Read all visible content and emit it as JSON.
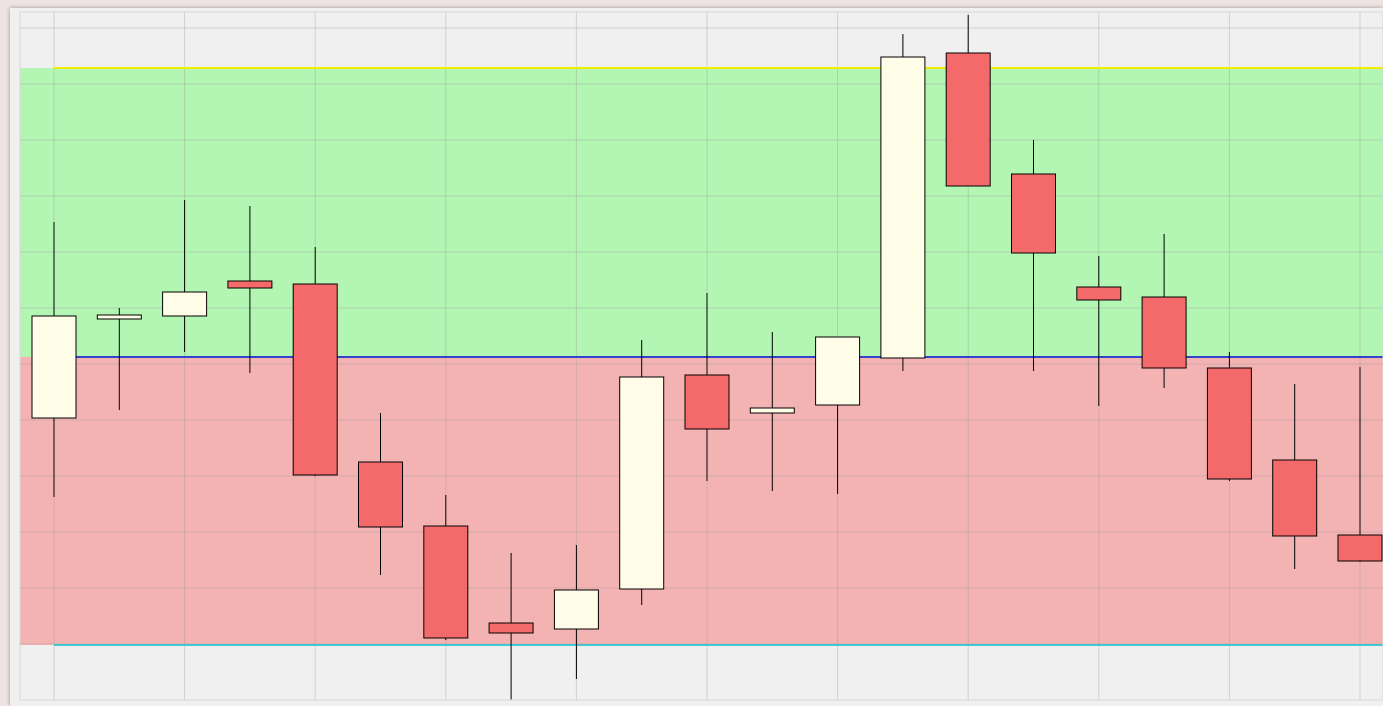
{
  "chart_data": {
    "type": "candlestick",
    "categories": [
      null,
      null,
      null,
      null,
      null,
      null,
      null,
      null,
      null,
      null,
      null,
      null,
      null,
      null,
      null,
      null,
      null,
      null,
      null,
      null,
      null
    ],
    "open": [
      282,
      381,
      384,
      419,
      416,
      238,
      174,
      77,
      71,
      111,
      325,
      287,
      295,
      342,
      647,
      526,
      413,
      403,
      332,
      240,
      165
    ],
    "high": [
      478,
      392,
      500,
      494,
      453,
      287,
      205,
      147,
      155,
      360,
      407,
      368,
      363,
      666,
      685,
      560,
      444,
      466,
      348,
      316,
      333
    ],
    "low": [
      203,
      290,
      348,
      327,
      224,
      125,
      60,
      0,
      21,
      95,
      219,
      209,
      206,
      329,
      514,
      329,
      294,
      312,
      219,
      131,
      138
    ],
    "close": [
      384,
      385,
      408,
      412,
      225,
      173,
      62,
      67,
      110,
      323,
      271,
      292,
      363,
      643,
      514,
      447,
      400,
      332,
      221,
      164,
      139
    ],
    "up_color": "#fffde8",
    "down_color": "#f46a6a",
    "bands": [
      {
        "color": "#eeee00",
        "values": [
          632,
          632,
          632,
          632,
          632,
          632,
          632,
          632,
          632,
          632,
          632,
          632,
          632,
          632,
          632,
          632,
          632,
          632,
          632,
          632,
          632
        ]
      },
      {
        "color": "#3344cc",
        "values": [
          343,
          343,
          343,
          343,
          343,
          343,
          343,
          343,
          343,
          343,
          343,
          343,
          343,
          343,
          343,
          343,
          343,
          343,
          343,
          343,
          343
        ]
      },
      {
        "color": "#44c8d0",
        "values": [
          55,
          55,
          55,
          55,
          55,
          55,
          55,
          55,
          55,
          55,
          55,
          55,
          55,
          55,
          55,
          55,
          55,
          55,
          55,
          55,
          55
        ]
      }
    ],
    "zone_colors": [
      "#b3f5b3",
      "#f4b3b3"
    ],
    "ylim": [
      0,
      700
    ],
    "yticks": [
      0,
      56,
      112,
      168,
      224,
      280,
      336,
      392,
      448,
      504,
      560,
      616,
      672
    ],
    "grid": true
  }
}
